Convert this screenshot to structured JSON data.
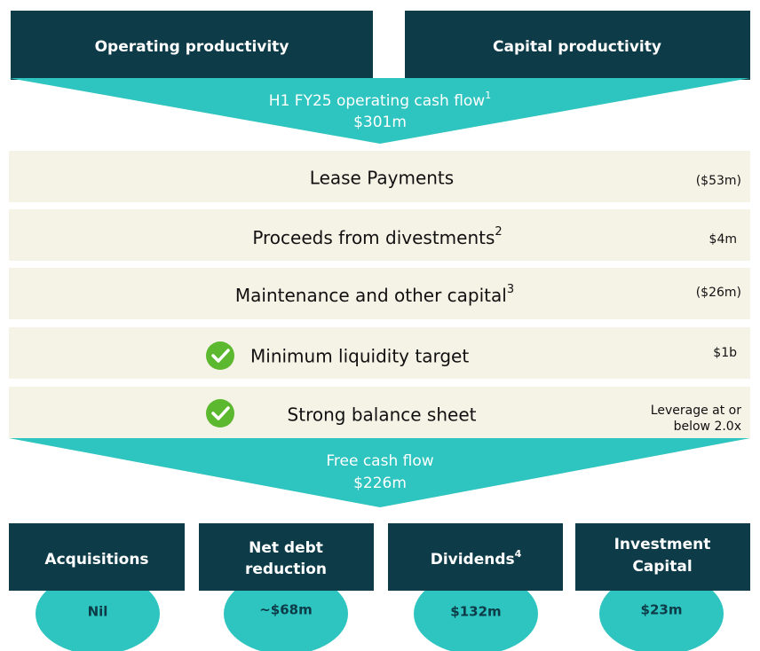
{
  "header": {
    "left": "Operating productivity",
    "right": "Capital productivity"
  },
  "inflow": {
    "label": "H1 FY25 operating cash flow",
    "note": "1",
    "value": "$301m"
  },
  "rows": [
    {
      "label": "Lease Payments",
      "value": "($53m)"
    },
    {
      "label": "Proceeds from divestments",
      "note": "2",
      "value": "$4m"
    },
    {
      "label": "Maintenance and other capital",
      "note": "3",
      "value": "($26m)"
    },
    {
      "label": "Minimum liquidity target",
      "value": "$1b"
    },
    {
      "label": "Strong balance sheet",
      "value": [
        "Leverage at or",
        "below 2.0x"
      ]
    }
  ],
  "outflow": {
    "label": "Free cash flow",
    "value": "$226m"
  },
  "uses": [
    {
      "label": [
        "Acquisitions"
      ],
      "value": "Nil"
    },
    {
      "label": [
        "Net debt",
        "reduction"
      ],
      "value": "~$68m"
    },
    {
      "label": [
        "Dividends"
      ],
      "note": "4",
      "value": "$132m"
    },
    {
      "label": [
        "Investment",
        "Capital"
      ],
      "value": "$23m"
    }
  ]
}
